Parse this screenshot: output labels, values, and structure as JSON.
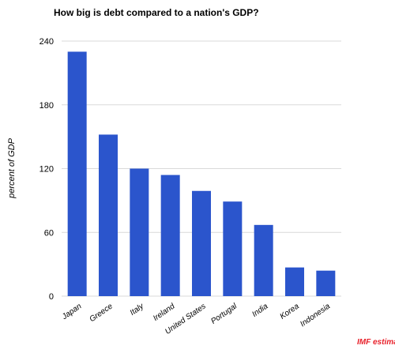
{
  "chart_data": {
    "type": "bar",
    "title": "How big is debt compared to a nation's GDP?",
    "ylabel": "percent of GDP",
    "xlabel": "",
    "categories": [
      "Japan",
      "Greece",
      "Italy",
      "Ireland",
      "United States",
      "Portugal",
      "India",
      "Korea",
      "Indonesia"
    ],
    "values": [
      230,
      152,
      120,
      114,
      99,
      89,
      67,
      27,
      24
    ],
    "ylim": [
      0,
      240
    ],
    "yticks": [
      "0",
      "60",
      "120",
      "180",
      "240"
    ],
    "grid": true,
    "legend": "none",
    "source_note": "IMF estimates",
    "colors": {
      "bar": "#2b55cc",
      "grid": "#d9d9d9",
      "source_note": "#e8202a"
    }
  }
}
